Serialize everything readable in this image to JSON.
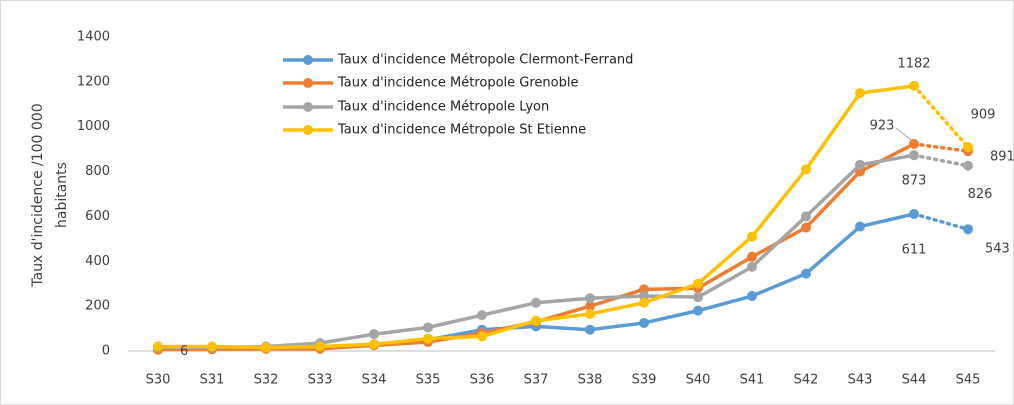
{
  "chart_data": {
    "type": "line",
    "ylabel": [
      "Taux d'incidence /100 000",
      "habitants"
    ],
    "categories": [
      "S30",
      "S31",
      "S32",
      "S33",
      "S34",
      "S35",
      "S36",
      "S37",
      "S38",
      "S39",
      "S40",
      "S41",
      "S42",
      "S43",
      "S44",
      "S45"
    ],
    "ylim": [
      0,
      1400
    ],
    "yticks": [
      0,
      200,
      400,
      600,
      800,
      1000,
      1200,
      1400
    ],
    "grid": false,
    "legend": "top",
    "dotted_last_segment": true,
    "series": [
      {
        "name": "Taux d'incidence Métropole Clermont-Ferrand",
        "color": "#5b9bd5",
        "values": [
          10,
          10,
          10,
          15,
          30,
          50,
          95,
          110,
          95,
          125,
          180,
          245,
          345,
          555,
          611,
          543
        ],
        "value_labels": [
          null,
          null,
          null,
          null,
          null,
          null,
          null,
          null,
          null,
          null,
          null,
          null,
          null,
          null,
          "611",
          "543"
        ]
      },
      {
        "name": "Taux d'incidence Métropole Grenoble",
        "color": "#ed7d31",
        "values": [
          6,
          8,
          10,
          10,
          25,
          40,
          80,
          130,
          200,
          275,
          280,
          420,
          550,
          800,
          923,
          891
        ],
        "value_labels": [
          "6",
          null,
          null,
          null,
          null,
          null,
          null,
          null,
          null,
          null,
          null,
          null,
          null,
          null,
          "923",
          "891"
        ]
      },
      {
        "name": "Taux d'incidence Métropole Lyon",
        "color": "#a5a5a5",
        "values": [
          15,
          15,
          20,
          35,
          75,
          105,
          160,
          215,
          235,
          245,
          240,
          375,
          600,
          830,
          873,
          826
        ],
        "value_labels": [
          null,
          null,
          null,
          null,
          null,
          null,
          null,
          null,
          null,
          null,
          null,
          null,
          null,
          null,
          "873",
          "826"
        ]
      },
      {
        "name": "Taux d'incidence Métropole St Etienne",
        "color": "#ffc000",
        "values": [
          20,
          20,
          15,
          20,
          30,
          55,
          65,
          135,
          165,
          215,
          300,
          510,
          810,
          1150,
          1182,
          909
        ],
        "value_labels": [
          null,
          null,
          null,
          null,
          null,
          null,
          null,
          null,
          null,
          null,
          null,
          null,
          null,
          null,
          "1182",
          "909"
        ]
      }
    ]
  }
}
